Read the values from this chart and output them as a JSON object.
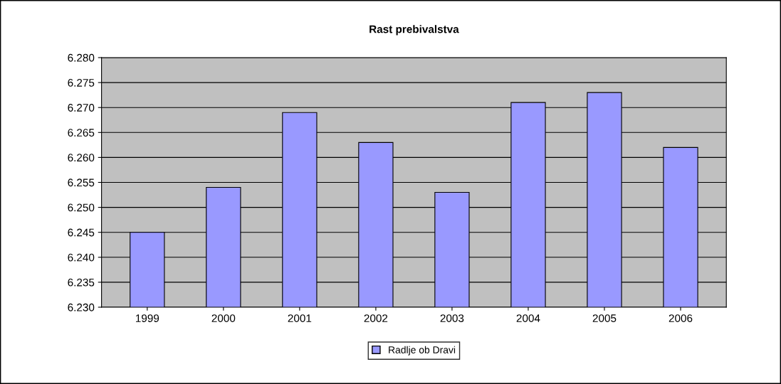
{
  "chart_data": {
    "type": "bar",
    "title": "Rast prebivalstva",
    "categories": [
      "1999",
      "2000",
      "2001",
      "2002",
      "2003",
      "2004",
      "2005",
      "2006"
    ],
    "series": [
      {
        "name": "Radlje ob Dravi",
        "color": "#9999ff",
        "values": [
          6.245,
          6.254,
          6.269,
          6.263,
          6.253,
          6.271,
          6.273,
          6.262
        ]
      }
    ],
    "ylim": [
      6.23,
      6.28
    ],
    "yticks": [
      {
        "value": 6.23,
        "label": "6.230"
      },
      {
        "value": 6.235,
        "label": "6.235"
      },
      {
        "value": 6.24,
        "label": "6.240"
      },
      {
        "value": 6.245,
        "label": "6.245"
      },
      {
        "value": 6.25,
        "label": "6.250"
      },
      {
        "value": 6.255,
        "label": "6.255"
      },
      {
        "value": 6.26,
        "label": "6.260"
      },
      {
        "value": 6.265,
        "label": "6.265"
      },
      {
        "value": 6.27,
        "label": "6.270"
      },
      {
        "value": 6.275,
        "label": "6.275"
      },
      {
        "value": 6.28,
        "label": "6.280"
      }
    ],
    "grid": "y",
    "legend": "bottom"
  }
}
